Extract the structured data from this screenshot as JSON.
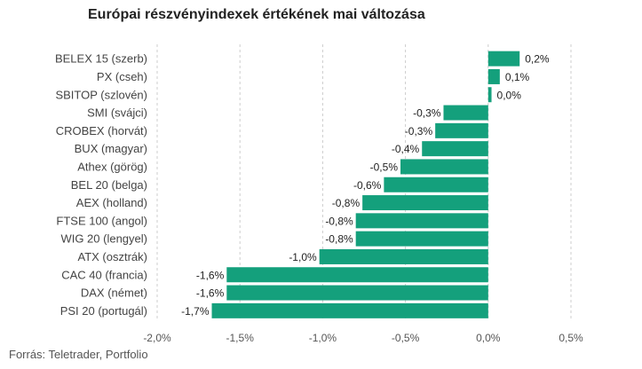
{
  "chart_data": {
    "type": "bar",
    "orientation": "horizontal",
    "title": "Európai részvényindexek értékének mai változása",
    "source": "Forrás: Teletrader, Portfolio",
    "categories": [
      "BELEX 15 (szerb)",
      "PX (cseh)",
      "SBITOP (szlovén)",
      "SMI (svájci)",
      "CROBEX (horvát)",
      "BUX (magyar)",
      "Athex (görög)",
      "BEL 20 (belga)",
      "AEX (holland)",
      "FTSE 100 (angol)",
      "WIG 20 (lengyel)",
      "ATX (osztrák)",
      "CAC 40 (francia)",
      "DAX (német)",
      "PSI 20 (portugál)"
    ],
    "values": [
      0.19,
      0.07,
      0.02,
      -0.27,
      -0.32,
      -0.4,
      -0.53,
      -0.63,
      -0.76,
      -0.8,
      -0.8,
      -1.02,
      -1.58,
      -1.58,
      -1.67
    ],
    "value_labels": [
      "0,2%",
      "0,1%",
      "0,0%",
      "-0,3%",
      "-0,3%",
      "-0,4%",
      "-0,5%",
      "-0,6%",
      "-0,8%",
      "-0,8%",
      "-0,8%",
      "-1,0%",
      "-1,6%",
      "-1,6%",
      "-1,7%"
    ],
    "xlim": [
      -2.0,
      0.5
    ],
    "xticks": [
      -2.0,
      -1.5,
      -1.0,
      -0.5,
      0.0,
      0.5
    ],
    "xtick_labels": [
      "-2,0%",
      "-1,5%",
      "-1,0%",
      "-0,5%",
      "0,0%",
      "0,5%"
    ],
    "grid": "vertical-dashed",
    "bar_color": "#14a07c",
    "grid_color": "#cccccc"
  }
}
